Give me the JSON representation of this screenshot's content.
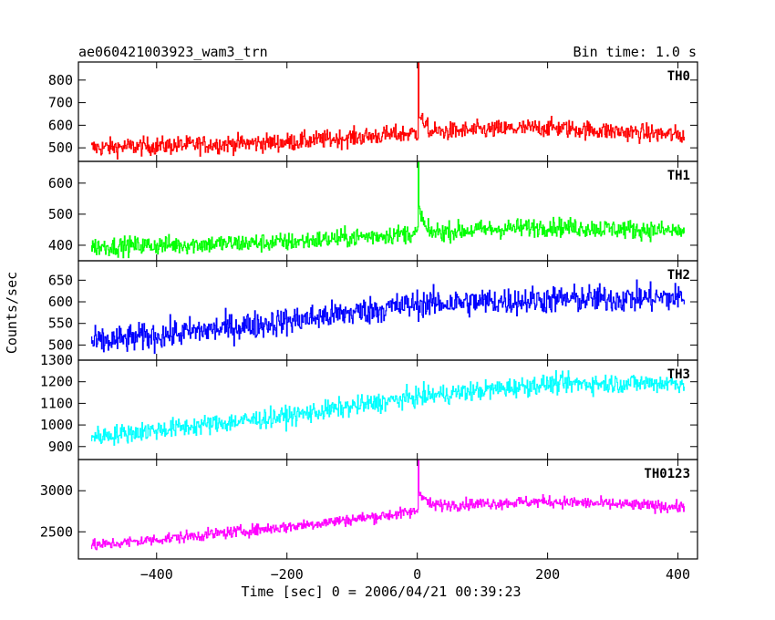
{
  "chart_data": {
    "type": "line",
    "title": "ae060421003923_wam3_trn",
    "bin_time": "Bin time: 1.0 s",
    "xlabel": "Time [sec] 0 = 2006/04/21 00:39:23",
    "ylabel": "Counts/sec",
    "xlim": [
      -520,
      430
    ],
    "x_ticks": [
      -400,
      -200,
      0,
      200,
      400
    ],
    "x_tick_labels": [
      "−400",
      "−200",
      "0",
      "200",
      "400"
    ],
    "x_range": [
      -500,
      410
    ],
    "grid": false,
    "panels": [
      {
        "name": "TH0",
        "color": "#ff0000",
        "ylim": [
          440,
          880
        ],
        "y_ticks": [
          500,
          600,
          700,
          800
        ],
        "y_tick_labels": [
          "500",
          "600",
          "700",
          "800"
        ],
        "trend_x": [
          -500,
          -200,
          -5,
          20,
          200,
          410
        ],
        "trend_y": [
          500,
          525,
          565,
          570,
          590,
          555
        ],
        "noise": 40,
        "spike": {
          "x": 2,
          "peak": 880,
          "decay_y": 650,
          "decay_until": 20
        }
      },
      {
        "name": "TH1",
        "color": "#00ff00",
        "ylim": [
          350,
          670
        ],
        "y_ticks": [
          400,
          500,
          600
        ],
        "y_tick_labels": [
          "400",
          "500",
          "600"
        ],
        "trend_x": [
          -500,
          -200,
          0,
          200,
          410
        ],
        "trend_y": [
          395,
          410,
          440,
          460,
          445
        ],
        "noise": 30,
        "spike": {
          "x": 2,
          "peak": 670,
          "decay_y": 520,
          "decay_until": 15
        }
      },
      {
        "name": "TH2",
        "color": "#0000ff",
        "ylim": [
          465,
          695
        ],
        "y_ticks": [
          500,
          550,
          600,
          650
        ],
        "y_tick_labels": [
          "500",
          "550",
          "600",
          "650"
        ],
        "trend_x": [
          -500,
          -200,
          0,
          200,
          410
        ],
        "trend_y": [
          505,
          555,
          595,
          605,
          610
        ],
        "noise": 32,
        "spike": null
      },
      {
        "name": "TH3",
        "color": "#00ffff",
        "ylim": [
          840,
          1300
        ],
        "y_ticks": [
          900,
          1000,
          1100,
          1200,
          1300
        ],
        "y_tick_labels": [
          "900",
          "1000",
          "1100",
          "1200",
          "1300"
        ],
        "trend_x": [
          -500,
          -200,
          0,
          200,
          410
        ],
        "trend_y": [
          945,
          1040,
          1130,
          1190,
          1195
        ],
        "noise": 45,
        "spike": null
      },
      {
        "name": "TH0123",
        "color": "#ff00ff",
        "ylim": [
          2170,
          3380
        ],
        "y_ticks": [
          2500,
          3000
        ],
        "y_tick_labels": [
          "2500",
          "3000"
        ],
        "trend_x": [
          -500,
          -200,
          -5,
          10,
          200,
          410
        ],
        "trend_y": [
          2330,
          2560,
          2740,
          2820,
          2870,
          2800
        ],
        "noise": 70,
        "spike": {
          "x": 2,
          "peak": 3380,
          "decay_y": 3000,
          "decay_until": 20
        }
      }
    ]
  }
}
